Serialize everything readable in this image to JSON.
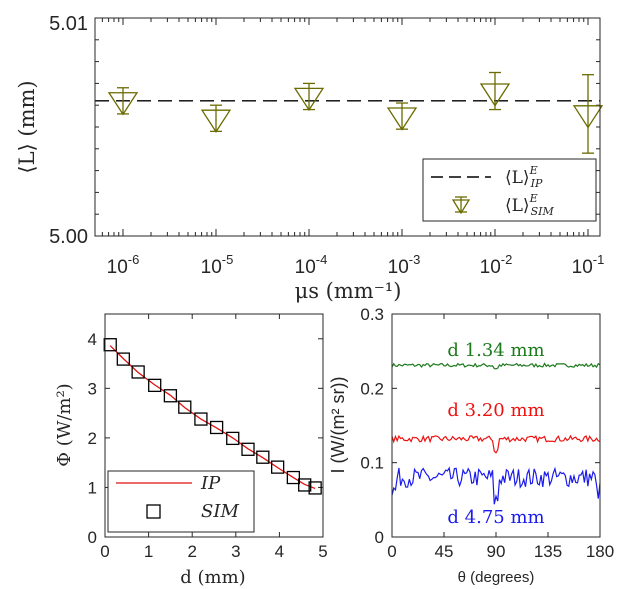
{
  "chart_data": [
    {
      "type": "scatter",
      "ylabel": "⟨L⟩ (mm)",
      "xlabel": "μs (mm⁻¹)",
      "xscale": "log",
      "xlim": [
        1e-06,
        0.1
      ],
      "ylim": [
        5.0,
        5.01
      ],
      "y_ticks": [
        "5.01",
        "5.00"
      ],
      "x_tick_exponents": [
        "-6",
        "-5",
        "-4",
        "-3",
        "-2",
        "-1"
      ],
      "legend_position": "bottom-right",
      "legend": [
        {
          "name": "⟨L⟩",
          "sup": "E",
          "sub": "IP",
          "style": "dashed line",
          "color": "#000000"
        },
        {
          "name": "⟨L⟩",
          "sup": "E",
          "sub": "SIM",
          "style": "triangle-down with error bars",
          "color": "#6b6b00"
        }
      ],
      "series": [
        {
          "key": "ip",
          "style": "dashed",
          "color": "#000000",
          "y": 5.0062
        },
        {
          "key": "sim",
          "marker": "triangle-down",
          "color": "#6b6b00",
          "points": [
            {
              "x": 1e-06,
              "y": 5.0062,
              "low": 5.0056,
              "high": 5.0068
            },
            {
              "x": 1e-05,
              "y": 5.0054,
              "low": 5.0048,
              "high": 5.006
            },
            {
              "x": 0.0001,
              "y": 5.0064,
              "low": 5.0058,
              "high": 5.007
            },
            {
              "x": 0.001,
              "y": 5.0055,
              "low": 5.0049,
              "high": 5.0061
            },
            {
              "x": 0.01,
              "y": 5.0066,
              "low": 5.0058,
              "high": 5.0075
            },
            {
              "x": 0.1,
              "y": 5.0056,
              "low": 5.0038,
              "high": 5.0074
            }
          ]
        }
      ]
    },
    {
      "type": "line",
      "ylabel": "Φ (W/m²)",
      "xlabel": "d (mm)",
      "xlim": [
        0,
        5
      ],
      "ylim": [
        0,
        4.5
      ],
      "x_ticks": [
        "0",
        "1",
        "2",
        "3",
        "4",
        "5"
      ],
      "y_ticks": [
        "0",
        "1",
        "2",
        "3",
        "4"
      ],
      "legend_position": "bottom-left",
      "legend": [
        {
          "name": "IP",
          "style": "solid line",
          "color": "#e01010"
        },
        {
          "name": "SIM",
          "style": "square marker",
          "color": "#000000"
        }
      ],
      "series": [
        {
          "key": "ip",
          "color": "#e01010",
          "x": [
            0.12,
            0.42,
            0.76,
            1.14,
            1.5,
            1.83,
            2.2,
            2.56,
            2.93,
            3.28,
            3.62,
            3.96,
            4.32,
            4.58,
            4.82
          ],
          "y": [
            3.86,
            3.6,
            3.32,
            3.07,
            2.86,
            2.61,
            2.38,
            2.2,
            2.0,
            1.78,
            1.6,
            1.4,
            1.2,
            1.06,
            0.98
          ]
        },
        {
          "key": "sim",
          "marker": "square",
          "color": "#000000",
          "x": [
            0.12,
            0.42,
            0.76,
            1.14,
            1.5,
            1.83,
            2.2,
            2.56,
            2.93,
            3.28,
            3.62,
            3.96,
            4.32,
            4.58,
            4.82
          ],
          "y": [
            3.88,
            3.59,
            3.33,
            3.06,
            2.85,
            2.62,
            2.38,
            2.21,
            1.99,
            1.77,
            1.61,
            1.41,
            1.2,
            1.05,
            0.99
          ]
        }
      ]
    },
    {
      "type": "line",
      "ylabel": "I (W/(m² sr))",
      "xlabel": "θ (degrees)",
      "xlim": [
        0,
        180
      ],
      "ylim": [
        0,
        0.3
      ],
      "x_ticks": [
        "0",
        "45",
        "90",
        "135",
        "180"
      ],
      "y_ticks": [
        "0",
        "0.1",
        "0.2",
        "0.3"
      ],
      "series": [
        {
          "key": "d134",
          "label": "d 1.34 mm",
          "color": "#1b7a1b",
          "level": 0.231,
          "noise": 0.0025,
          "dip": 0.004
        },
        {
          "key": "d320",
          "label": "d 3.20 mm",
          "color": "#ee1111",
          "level": 0.132,
          "noise": 0.004,
          "dip": 0.016
        },
        {
          "key": "d475",
          "label": "d 4.75 mm",
          "color": "#1a1aee",
          "level": 0.08,
          "noise": 0.013,
          "dip": 0.03
        }
      ]
    }
  ]
}
